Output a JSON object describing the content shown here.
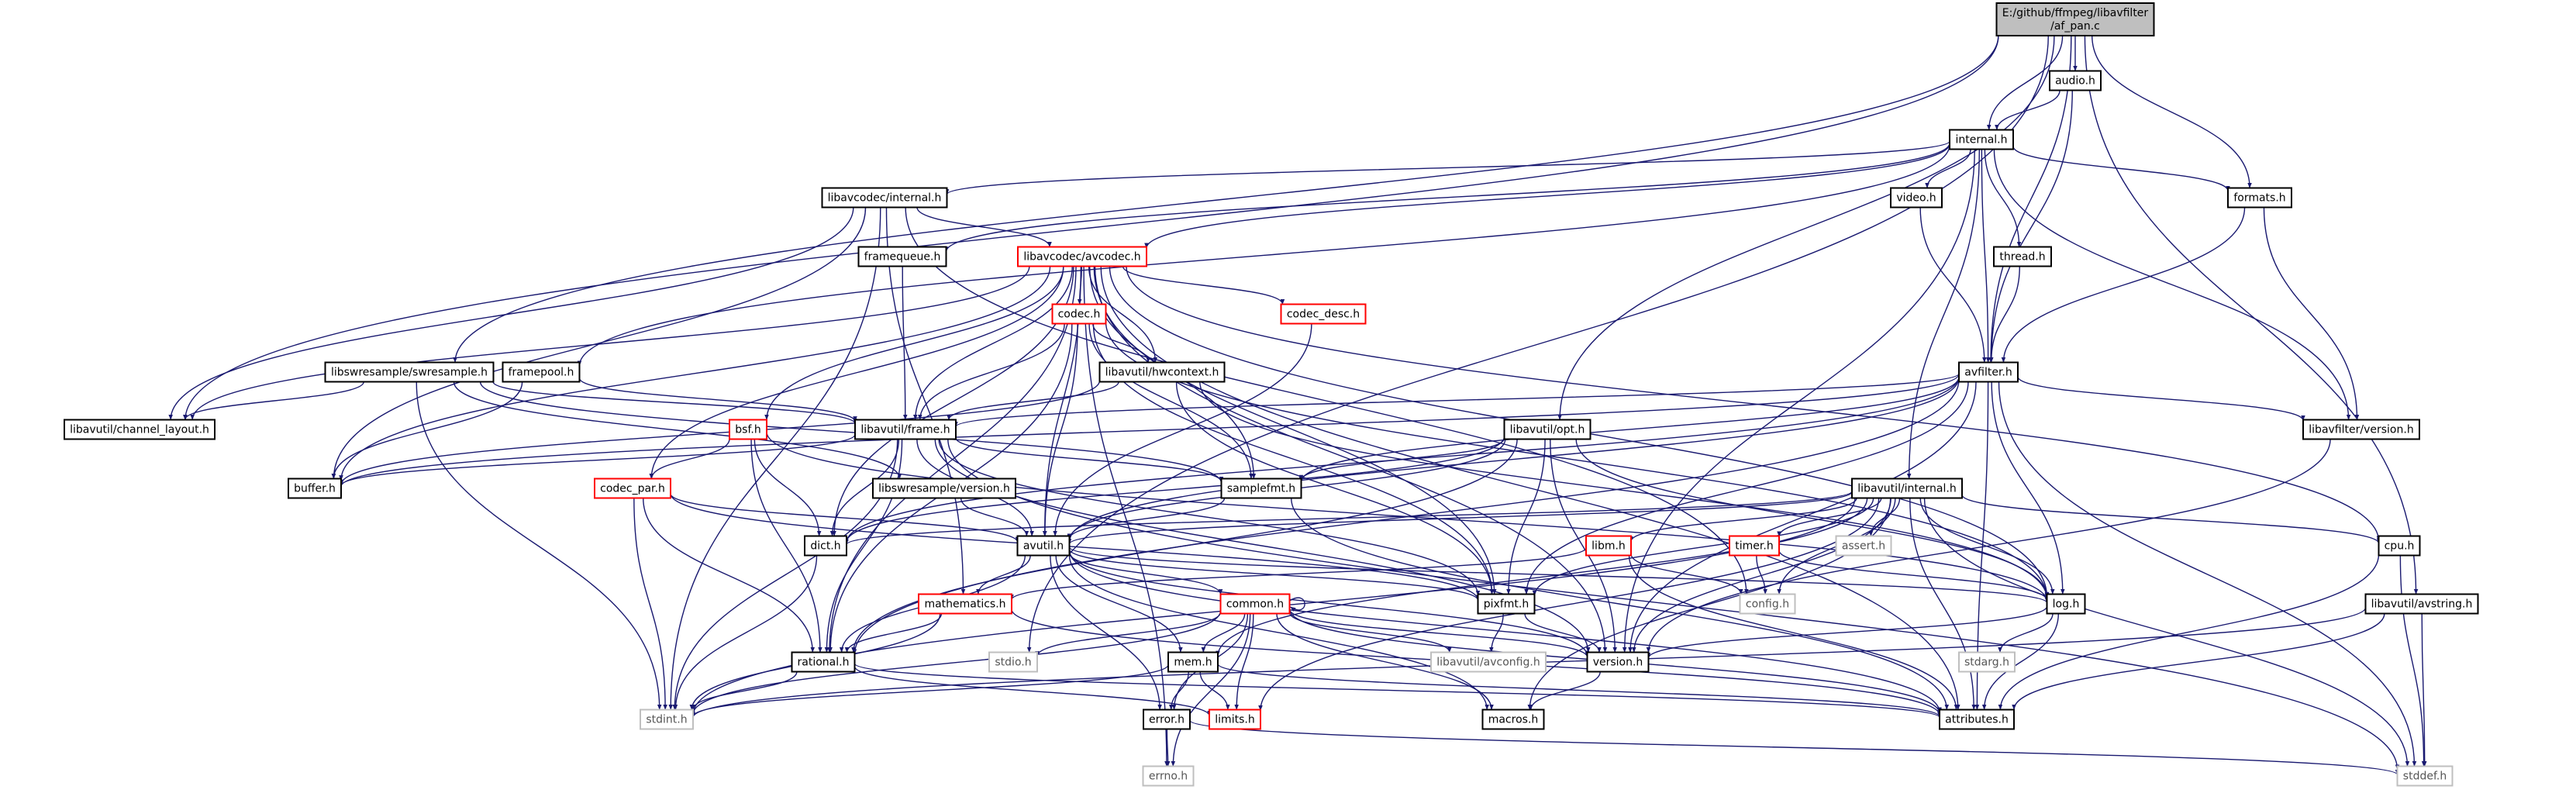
{
  "graph": {
    "colors": {
      "edge": "#191970",
      "border_default": "#000000",
      "border_truncated": "#ff0000",
      "border_system": "#bfbfbf",
      "root_fill": "#bfbfbf",
      "text": "#000000",
      "text_system": "#555555"
    },
    "nodes": [
      {
        "id": "root",
        "label": "E:/github/ffmpeg/libavfilter\n/af_pan.c",
        "kind": "root"
      },
      {
        "id": "audio",
        "label": "audio.h",
        "kind": "normal"
      },
      {
        "id": "internal",
        "label": "internal.h",
        "kind": "normal"
      },
      {
        "id": "formats",
        "label": "formats.h",
        "kind": "normal"
      },
      {
        "id": "lavc_internal",
        "label": "libavcodec/internal.h",
        "kind": "normal"
      },
      {
        "id": "video",
        "label": "video.h",
        "kind": "normal"
      },
      {
        "id": "framequeue",
        "label": "framequeue.h",
        "kind": "normal"
      },
      {
        "id": "avcodec",
        "label": "libavcodec/avcodec.h",
        "kind": "truncated"
      },
      {
        "id": "thread",
        "label": "thread.h",
        "kind": "normal"
      },
      {
        "id": "codec",
        "label": "codec.h",
        "kind": "truncated"
      },
      {
        "id": "codec_desc",
        "label": "codec_desc.h",
        "kind": "truncated"
      },
      {
        "id": "swr",
        "label": "libswresample/swresample.h",
        "kind": "normal"
      },
      {
        "id": "framepool",
        "label": "framepool.h",
        "kind": "normal"
      },
      {
        "id": "hwcontext",
        "label": "libavutil/hwcontext.h",
        "kind": "normal"
      },
      {
        "id": "avfilter",
        "label": "avfilter.h",
        "kind": "normal"
      },
      {
        "id": "chlayout",
        "label": "libavutil/channel_layout.h",
        "kind": "normal"
      },
      {
        "id": "bsf",
        "label": "bsf.h",
        "kind": "truncated"
      },
      {
        "id": "frame",
        "label": "libavutil/frame.h",
        "kind": "normal"
      },
      {
        "id": "opt",
        "label": "libavutil/opt.h",
        "kind": "normal"
      },
      {
        "id": "lavf_version",
        "label": "libavfilter/version.h",
        "kind": "normal"
      },
      {
        "id": "buffer",
        "label": "buffer.h",
        "kind": "normal"
      },
      {
        "id": "codec_par",
        "label": "codec_par.h",
        "kind": "truncated"
      },
      {
        "id": "swr_version",
        "label": "libswresample/version.h",
        "kind": "normal"
      },
      {
        "id": "samplefmt",
        "label": "samplefmt.h",
        "kind": "normal"
      },
      {
        "id": "lavu_internal",
        "label": "libavutil/internal.h",
        "kind": "normal"
      },
      {
        "id": "dict",
        "label": "dict.h",
        "kind": "normal"
      },
      {
        "id": "avutil",
        "label": "avutil.h",
        "kind": "normal"
      },
      {
        "id": "libm",
        "label": "libm.h",
        "kind": "truncated"
      },
      {
        "id": "timer",
        "label": "timer.h",
        "kind": "truncated"
      },
      {
        "id": "assert",
        "label": "assert.h",
        "kind": "system"
      },
      {
        "id": "cpu",
        "label": "cpu.h",
        "kind": "normal"
      },
      {
        "id": "mathematics",
        "label": "mathematics.h",
        "kind": "truncated"
      },
      {
        "id": "common",
        "label": "common.h",
        "kind": "truncated"
      },
      {
        "id": "pixfmt",
        "label": "pixfmt.h",
        "kind": "normal"
      },
      {
        "id": "config",
        "label": "config.h",
        "kind": "system"
      },
      {
        "id": "log",
        "label": "log.h",
        "kind": "normal"
      },
      {
        "id": "avstring",
        "label": "libavutil/avstring.h",
        "kind": "normal"
      },
      {
        "id": "rational",
        "label": "rational.h",
        "kind": "normal"
      },
      {
        "id": "stdio",
        "label": "stdio.h",
        "kind": "system"
      },
      {
        "id": "mem",
        "label": "mem.h",
        "kind": "normal"
      },
      {
        "id": "avconfig",
        "label": "libavutil/avconfig.h",
        "kind": "system"
      },
      {
        "id": "version",
        "label": "version.h",
        "kind": "normal"
      },
      {
        "id": "stdarg",
        "label": "stdarg.h",
        "kind": "system"
      },
      {
        "id": "stdint",
        "label": "stdint.h",
        "kind": "system"
      },
      {
        "id": "limits",
        "label": "limits.h",
        "kind": "truncated"
      },
      {
        "id": "error",
        "label": "error.h",
        "kind": "normal"
      },
      {
        "id": "macros",
        "label": "macros.h",
        "kind": "normal"
      },
      {
        "id": "attributes",
        "label": "attributes.h",
        "kind": "normal"
      },
      {
        "id": "errno",
        "label": "errno.h",
        "kind": "system"
      },
      {
        "id": "stddef",
        "label": "stddef.h",
        "kind": "system"
      }
    ],
    "edges": [
      [
        "root",
        "audio"
      ],
      [
        "root",
        "internal"
      ],
      [
        "root",
        "formats"
      ],
      [
        "root",
        "avfilter"
      ],
      [
        "root",
        "chlayout"
      ],
      [
        "root",
        "swr"
      ],
      [
        "root",
        "opt"
      ],
      [
        "root",
        "avstring"
      ],
      [
        "root",
        "stdio"
      ],
      [
        "audio",
        "internal"
      ],
      [
        "audio",
        "avfilter"
      ],
      [
        "internal",
        "lavc_internal"
      ],
      [
        "internal",
        "video"
      ],
      [
        "internal",
        "framequeue"
      ],
      [
        "internal",
        "avcodec"
      ],
      [
        "internal",
        "thread"
      ],
      [
        "internal",
        "formats"
      ],
      [
        "internal",
        "framepool"
      ],
      [
        "internal",
        "avfilter"
      ],
      [
        "internal",
        "lavf_version"
      ],
      [
        "internal",
        "lavu_internal"
      ],
      [
        "internal",
        "version"
      ],
      [
        "formats",
        "avfilter"
      ],
      [
        "formats",
        "lavf_version"
      ],
      [
        "lavc_internal",
        "avcodec"
      ],
      [
        "lavc_internal",
        "chlayout"
      ],
      [
        "lavc_internal",
        "buffer"
      ],
      [
        "lavc_internal",
        "stdint"
      ],
      [
        "lavc_internal",
        "mathematics"
      ],
      [
        "lavc_internal",
        "config"
      ],
      [
        "video",
        "avfilter"
      ],
      [
        "thread",
        "avfilter"
      ],
      [
        "framequeue",
        "frame"
      ],
      [
        "framepool",
        "buffer"
      ],
      [
        "framepool",
        "frame"
      ],
      [
        "avcodec",
        "codec"
      ],
      [
        "avcodec",
        "codec_desc"
      ],
      [
        "avcodec",
        "hwcontext"
      ],
      [
        "avcodec",
        "bsf"
      ],
      [
        "avcodec",
        "frame"
      ],
      [
        "avcodec",
        "samplefmt"
      ],
      [
        "avcodec",
        "codec_par"
      ],
      [
        "avcodec",
        "buffer"
      ],
      [
        "avcodec",
        "dict"
      ],
      [
        "avcodec",
        "avutil"
      ],
      [
        "avcodec",
        "rational"
      ],
      [
        "avcodec",
        "pixfmt"
      ],
      [
        "avcodec",
        "log"
      ],
      [
        "avcodec",
        "chlayout"
      ],
      [
        "avcodec",
        "cpu"
      ],
      [
        "avcodec",
        "errno"
      ],
      [
        "avcodec",
        "attributes"
      ],
      [
        "avcodec",
        "version"
      ],
      [
        "codec",
        "hwcontext"
      ],
      [
        "codec",
        "avutil"
      ],
      [
        "codec",
        "samplefmt"
      ],
      [
        "codec",
        "rational"
      ],
      [
        "codec",
        "pixfmt"
      ],
      [
        "codec",
        "log"
      ],
      [
        "codec",
        "frame"
      ],
      [
        "codec_desc",
        "avutil"
      ],
      [
        "swr",
        "chlayout"
      ],
      [
        "swr",
        "frame"
      ],
      [
        "swr",
        "swr_version"
      ],
      [
        "swr",
        "samplefmt"
      ],
      [
        "swr",
        "stdint"
      ],
      [
        "hwcontext",
        "buffer"
      ],
      [
        "hwcontext",
        "frame"
      ],
      [
        "hwcontext",
        "log"
      ],
      [
        "hwcontext",
        "pixfmt"
      ],
      [
        "avfilter",
        "frame"
      ],
      [
        "avfilter",
        "samplefmt"
      ],
      [
        "avfilter",
        "buffer"
      ],
      [
        "avfilter",
        "dict"
      ],
      [
        "avfilter",
        "avutil"
      ],
      [
        "avfilter",
        "log"
      ],
      [
        "avfilter",
        "pixfmt"
      ],
      [
        "avfilter",
        "rational"
      ],
      [
        "avfilter",
        "lavf_version"
      ],
      [
        "avfilter",
        "attributes"
      ],
      [
        "avfilter",
        "stddef"
      ],
      [
        "avfilter",
        "version"
      ],
      [
        "bsf",
        "codec_par"
      ],
      [
        "bsf",
        "dict"
      ],
      [
        "bsf",
        "log"
      ],
      [
        "bsf",
        "rational"
      ],
      [
        "frame",
        "buffer"
      ],
      [
        "frame",
        "dict"
      ],
      [
        "frame",
        "avutil"
      ],
      [
        "frame",
        "rational"
      ],
      [
        "frame",
        "samplefmt"
      ],
      [
        "frame",
        "pixfmt"
      ],
      [
        "frame",
        "stdint"
      ],
      [
        "frame",
        "stddef"
      ],
      [
        "frame",
        "version"
      ],
      [
        "opt",
        "avutil"
      ],
      [
        "opt",
        "rational"
      ],
      [
        "opt",
        "samplefmt"
      ],
      [
        "opt",
        "dict"
      ],
      [
        "opt",
        "pixfmt"
      ],
      [
        "opt",
        "log"
      ],
      [
        "opt",
        "version"
      ],
      [
        "lavf_version",
        "version"
      ],
      [
        "codec_par",
        "avutil"
      ],
      [
        "codec_par",
        "rational"
      ],
      [
        "codec_par",
        "pixfmt"
      ],
      [
        "codec_par",
        "stdint"
      ],
      [
        "swr_version",
        "avutil"
      ],
      [
        "samplefmt",
        "avutil"
      ],
      [
        "samplefmt",
        "attributes"
      ],
      [
        "lavu_internal",
        "libm"
      ],
      [
        "lavu_internal",
        "timer"
      ],
      [
        "lavu_internal",
        "assert"
      ],
      [
        "lavu_internal",
        "cpu"
      ],
      [
        "lavu_internal",
        "dict"
      ],
      [
        "lavu_internal",
        "pixfmt"
      ],
      [
        "lavu_internal",
        "config"
      ],
      [
        "lavu_internal",
        "log"
      ],
      [
        "lavu_internal",
        "version"
      ],
      [
        "lavu_internal",
        "macros"
      ],
      [
        "lavu_internal",
        "attributes"
      ],
      [
        "lavu_internal",
        "stddef"
      ],
      [
        "lavu_internal",
        "mem"
      ],
      [
        "lavu_internal",
        "avutil"
      ],
      [
        "lavu_internal",
        "limits"
      ],
      [
        "lavu_internal",
        "stdint"
      ],
      [
        "dict",
        "stdint"
      ],
      [
        "avutil",
        "common"
      ],
      [
        "avutil",
        "error"
      ],
      [
        "avutil",
        "mathematics"
      ],
      [
        "avutil",
        "rational"
      ],
      [
        "avutil",
        "version"
      ],
      [
        "avutil",
        "macros"
      ],
      [
        "avutil",
        "mem"
      ],
      [
        "avutil",
        "log"
      ],
      [
        "avutil",
        "pixfmt"
      ],
      [
        "avutil",
        "attributes"
      ],
      [
        "libm",
        "config"
      ],
      [
        "libm",
        "attributes"
      ],
      [
        "libm",
        "mathematics"
      ],
      [
        "timer",
        "config"
      ],
      [
        "timer",
        "log"
      ],
      [
        "cpu",
        "attributes"
      ],
      [
        "cpu",
        "stddef"
      ],
      [
        "mathematics",
        "rational"
      ],
      [
        "mathematics",
        "attributes"
      ],
      [
        "mathematics",
        "stdint"
      ],
      [
        "common",
        "common"
      ],
      [
        "common",
        "attributes"
      ],
      [
        "common",
        "macros"
      ],
      [
        "common",
        "version"
      ],
      [
        "common",
        "avconfig"
      ],
      [
        "common",
        "mem"
      ],
      [
        "common",
        "error"
      ],
      [
        "common",
        "stdint"
      ],
      [
        "common",
        "limits"
      ],
      [
        "common",
        "errno"
      ],
      [
        "common",
        "stdio"
      ],
      [
        "pixfmt",
        "version"
      ],
      [
        "pixfmt",
        "avconfig"
      ],
      [
        "log",
        "attributes"
      ],
      [
        "log",
        "version"
      ],
      [
        "log",
        "stdarg"
      ],
      [
        "avstring",
        "attributes"
      ],
      [
        "avstring",
        "stddef"
      ],
      [
        "avstring",
        "stdint"
      ],
      [
        "rational",
        "attributes"
      ],
      [
        "rational",
        "stdint"
      ],
      [
        "rational",
        "limits"
      ],
      [
        "mem",
        "attributes"
      ],
      [
        "mem",
        "error"
      ],
      [
        "mem",
        "limits"
      ],
      [
        "mem",
        "stdint"
      ],
      [
        "version",
        "macros"
      ],
      [
        "error",
        "errno"
      ],
      [
        "error",
        "stddef"
      ]
    ]
  }
}
